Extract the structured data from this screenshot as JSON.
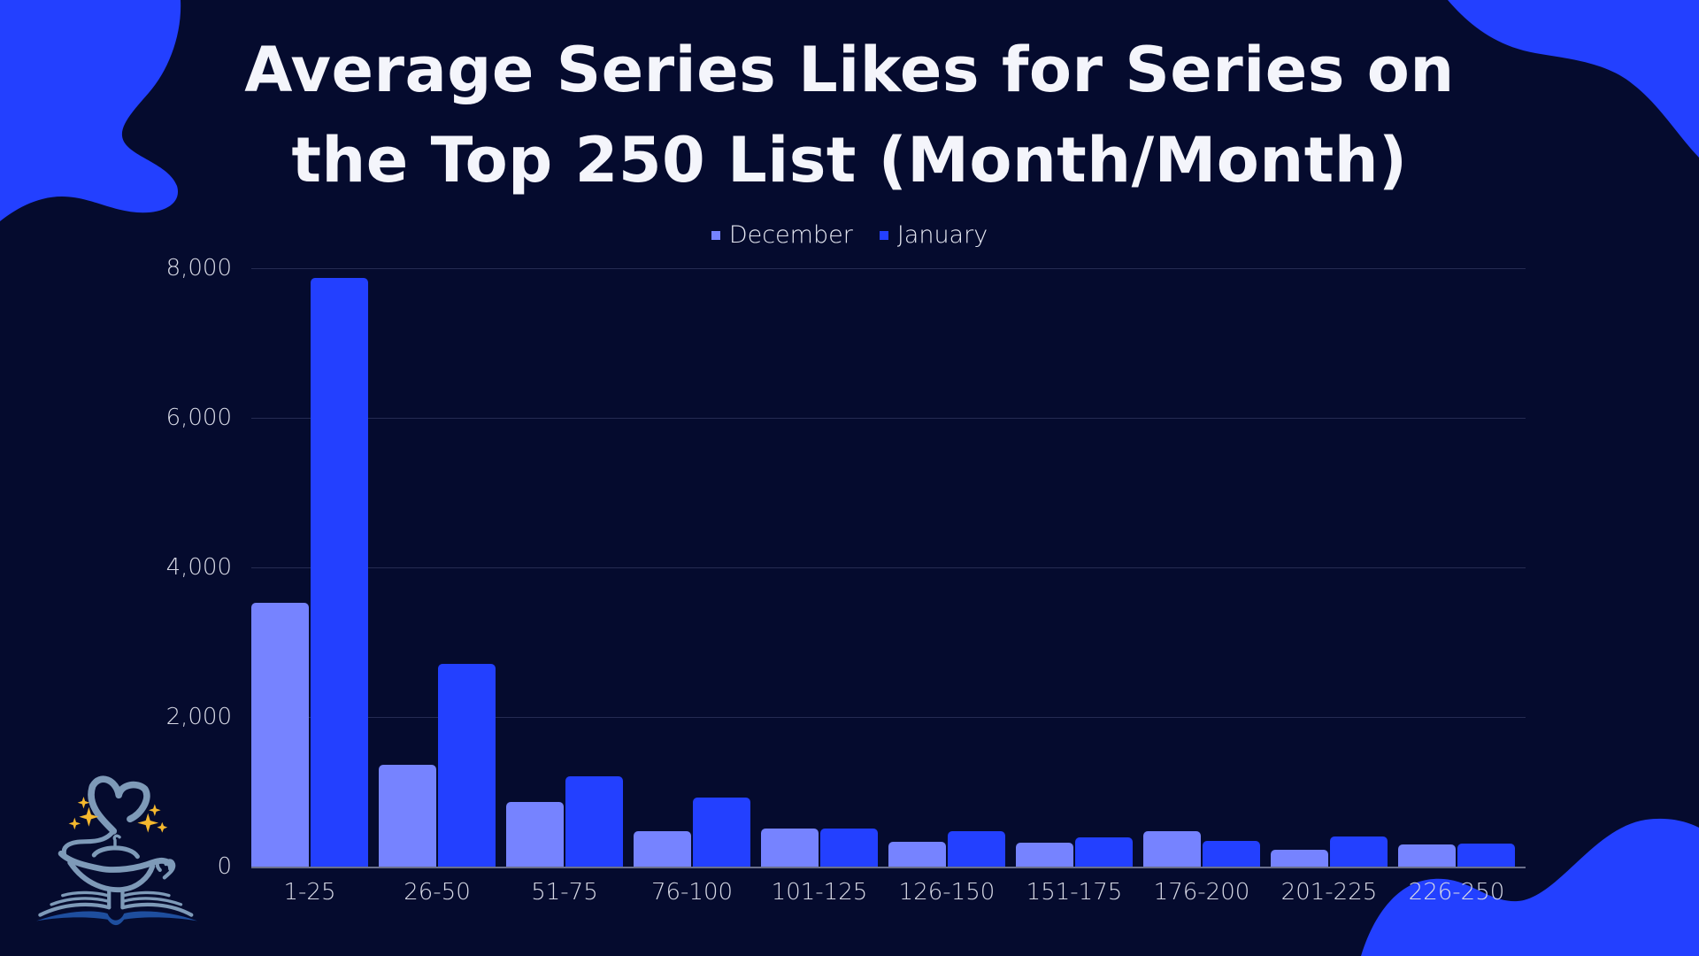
{
  "title": {
    "line1": "Average Series Likes for Series on",
    "line2": "the Top 250 List (Month/Month)"
  },
  "legend": [
    {
      "label": "December",
      "color": "#7683FF"
    },
    {
      "label": "January",
      "color": "#2340FF"
    }
  ],
  "colors": {
    "background": "#050B2E",
    "accent_blob": "#2340FF",
    "title_text": "#F4F5FB",
    "december": "#7683FF",
    "january": "#2340FF",
    "gridline": "#252B52"
  },
  "logo": {
    "icon": "magic-lamp-book-logo"
  },
  "chart_data": {
    "type": "bar",
    "title": "Average Series Likes for Series on the Top 250 List (Month/Month)",
    "xlabel": "",
    "ylabel": "",
    "categories": [
      "1-25",
      "26-50",
      "51-75",
      "76-100",
      "101-125",
      "126-150",
      "151-175",
      "176-200",
      "201-225",
      "226-250"
    ],
    "series": [
      {
        "name": "December",
        "color": "#7683FF",
        "values": [
          3530,
          1360,
          865,
          475,
          510,
          330,
          320,
          475,
          225,
          295
        ]
      },
      {
        "name": "January",
        "color": "#2340FF",
        "values": [
          7870,
          2710,
          1205,
          925,
          505,
          475,
          390,
          345,
          400,
          310
        ]
      }
    ],
    "yticks": [
      "0",
      "2,000",
      "4,000",
      "6,000",
      "8,000"
    ],
    "ytick_values": [
      0,
      2000,
      4000,
      6000,
      8000
    ],
    "ylim": [
      0,
      8000
    ],
    "grid": true,
    "legend_position": "top"
  }
}
